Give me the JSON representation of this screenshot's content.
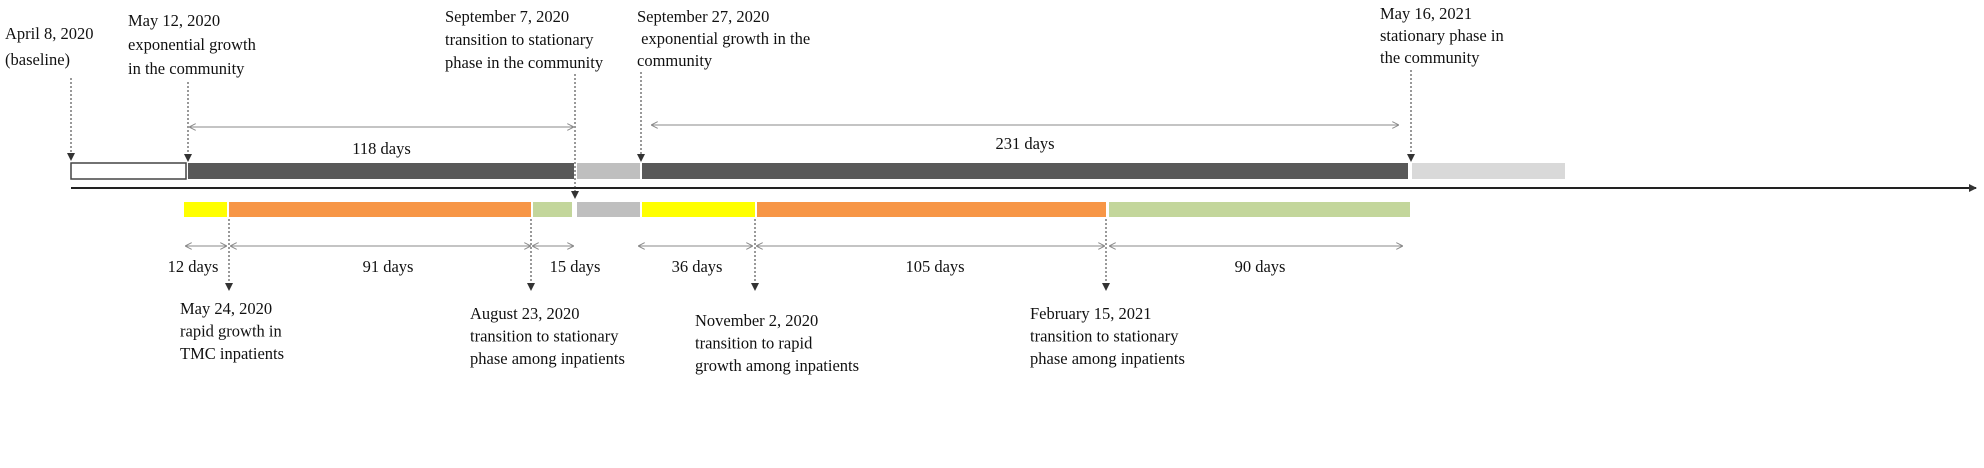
{
  "top_events": [
    {
      "lines": [
        "April 8, 2020",
        "(baseline)"
      ]
    },
    {
      "lines": [
        "May 12, 2020",
        "exponential growth",
        "in the community"
      ]
    },
    {
      "lines": [
        "September 7, 2020",
        "transition to stationary",
        "phase in the community"
      ]
    },
    {
      "lines": [
        "September 27, 2020",
        " exponential growth in the",
        "community"
      ]
    },
    {
      "lines": [
        "May 16, 2021",
        "stationary phase in",
        "the community"
      ]
    }
  ],
  "top_spans": [
    "118 days",
    "231 days"
  ],
  "bottom_spans": [
    "12 days",
    "91 days",
    "15 days",
    "36 days",
    "105 days",
    "90 days"
  ],
  "bottom_events": [
    {
      "lines": [
        "May 24, 2020",
        "rapid growth in",
        "TMC inpatients"
      ]
    },
    {
      "lines": [
        "August 23, 2020",
        "transition to stationary",
        "phase among inpatients"
      ]
    },
    {
      "lines": [
        "November 2, 2020",
        "transition to rapid",
        "growth among inpatients"
      ]
    },
    {
      "lines": [
        "February 15, 2021",
        "transition to stationary",
        "phase among inpatients"
      ]
    }
  ]
}
